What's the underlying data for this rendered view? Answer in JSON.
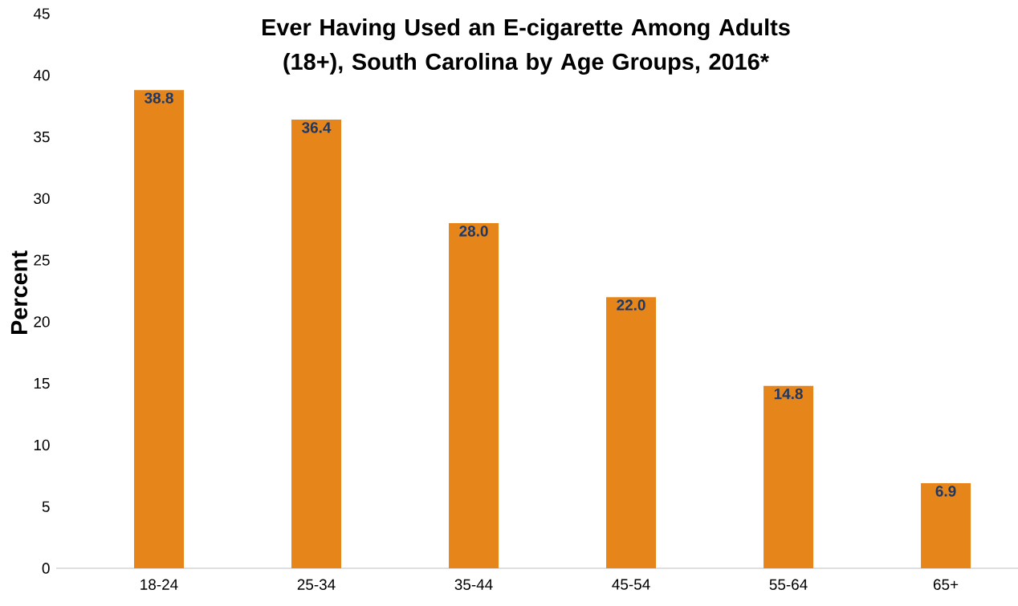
{
  "chart_data": {
    "type": "bar",
    "title": "Ever Having Used an E-cigarette Among Adults (18+), South Carolina by Age Groups, 2016*",
    "ylabel": "Percent",
    "categories": [
      "18-24",
      "25-34",
      "35-44",
      "45-54",
      "55-64",
      "65+"
    ],
    "values": [
      38.8,
      36.4,
      28.0,
      22.0,
      14.8,
      6.9
    ],
    "value_labels": [
      "38.8",
      "36.4",
      "28.0",
      "22.0",
      "14.8",
      "6.9"
    ],
    "color": "#e6851a",
    "ylim": [
      0,
      45
    ],
    "yticks": [
      0,
      5,
      10,
      15,
      20,
      25,
      30,
      35,
      40,
      45
    ]
  }
}
